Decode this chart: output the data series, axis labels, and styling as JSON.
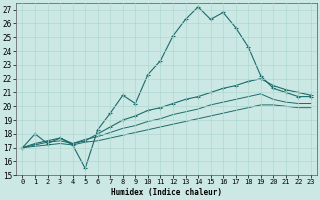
{
  "xlabel": "Humidex (Indice chaleur)",
  "bg_color": "#cce8e4",
  "grid_color": "#b0d8d0",
  "line_color": "#1a6b6b",
  "xlim": [
    -0.5,
    23.5
  ],
  "ylim": [
    15,
    27.5
  ],
  "yticks": [
    15,
    16,
    17,
    18,
    19,
    20,
    21,
    22,
    23,
    24,
    25,
    26,
    27
  ],
  "xticks": [
    0,
    1,
    2,
    3,
    4,
    5,
    6,
    7,
    8,
    9,
    10,
    11,
    12,
    13,
    14,
    15,
    16,
    17,
    18,
    19,
    20,
    21,
    22,
    23
  ],
  "line1_x": [
    0,
    1,
    2,
    3,
    4,
    5,
    6,
    7,
    8,
    9,
    10,
    11,
    12,
    13,
    14,
    15,
    16,
    17,
    18,
    19,
    20,
    21,
    22,
    23
  ],
  "line1_y": [
    17.0,
    18.0,
    17.3,
    17.7,
    17.2,
    15.5,
    18.3,
    19.5,
    20.8,
    20.2,
    22.3,
    23.3,
    25.1,
    26.3,
    27.2,
    26.3,
    26.8,
    25.7,
    24.3,
    22.2,
    21.3,
    21.0,
    20.7,
    20.7
  ],
  "line2_x": [
    0,
    1,
    2,
    3,
    4,
    5,
    6,
    7,
    8,
    9,
    10,
    11,
    12,
    13,
    14,
    15,
    16,
    17,
    18,
    19,
    20,
    21,
    22,
    23
  ],
  "line2_y": [
    17.0,
    17.3,
    17.5,
    17.7,
    17.3,
    17.5,
    18.0,
    18.5,
    19.0,
    19.3,
    19.7,
    19.9,
    20.2,
    20.5,
    20.7,
    21.0,
    21.3,
    21.5,
    21.8,
    22.0,
    21.5,
    21.2,
    21.0,
    20.8
  ],
  "line3_x": [
    0,
    1,
    2,
    3,
    4,
    5,
    6,
    7,
    8,
    9,
    10,
    11,
    12,
    13,
    14,
    15,
    16,
    17,
    18,
    19,
    20,
    21,
    22,
    23
  ],
  "line3_y": [
    17.0,
    17.2,
    17.4,
    17.5,
    17.3,
    17.6,
    17.8,
    18.1,
    18.4,
    18.6,
    18.9,
    19.1,
    19.4,
    19.6,
    19.8,
    20.1,
    20.3,
    20.5,
    20.7,
    20.9,
    20.5,
    20.3,
    20.2,
    20.2
  ],
  "line4_x": [
    0,
    1,
    2,
    3,
    4,
    5,
    6,
    7,
    8,
    9,
    10,
    11,
    12,
    13,
    14,
    15,
    16,
    17,
    18,
    19,
    20,
    21,
    22,
    23
  ],
  "line4_y": [
    17.0,
    17.1,
    17.2,
    17.3,
    17.2,
    17.4,
    17.5,
    17.7,
    17.9,
    18.1,
    18.3,
    18.5,
    18.7,
    18.9,
    19.1,
    19.3,
    19.5,
    19.7,
    19.9,
    20.1,
    20.1,
    20.0,
    19.9,
    19.9
  ]
}
